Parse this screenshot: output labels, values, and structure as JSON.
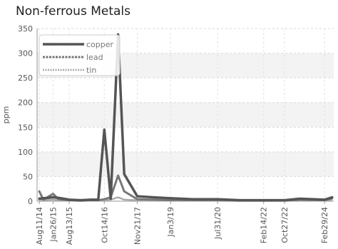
{
  "chart_data": {
    "type": "line",
    "title": "Non-ferrous Metals",
    "ylabel": "ppm",
    "xlabel": "",
    "ylim": [
      0,
      350
    ],
    "yticks": [
      0,
      50,
      100,
      150,
      200,
      250,
      300,
      350
    ],
    "grid": true,
    "legend_position": "top-left",
    "x_tick_labels": [
      "Aug11/14",
      "Jan26/15",
      "Aug13/15",
      "Oct14/16",
      "Nov21/17",
      "Jan3/19",
      "Jul31/20",
      "Feb14/22",
      "Oct27/22",
      "Feb29/24"
    ],
    "x": [
      "2014-08-11",
      "2014-10-01",
      "2015-01-26",
      "2015-04-01",
      "2015-08-13",
      "2016-01-01",
      "2016-05-01",
      "2016-08-01",
      "2016-10-14",
      "2017-01-01",
      "2017-04-01",
      "2017-06-15",
      "2017-11-21",
      "2018-06-01",
      "2019-01-03",
      "2019-10-01",
      "2020-07-31",
      "2021-05-01",
      "2022-02-14",
      "2022-06-01",
      "2022-10-27",
      "2023-05-01",
      "2024-02-29",
      "2024-06-01"
    ],
    "series": [
      {
        "name": "copper",
        "color": "#555555",
        "style": "solid",
        "values": [
          5,
          6,
          8,
          7,
          3,
          2,
          3,
          3,
          145,
          5,
          338,
          55,
          10,
          8,
          6,
          4,
          4,
          2,
          2,
          2,
          2,
          5,
          3,
          8
        ]
      },
      {
        "name": "lead",
        "color": "#777777",
        "style": "dashed",
        "values": [
          20,
          3,
          15,
          4,
          2,
          1,
          2,
          2,
          4,
          8,
          52,
          20,
          4,
          3,
          2,
          2,
          2,
          1,
          1,
          1,
          1,
          3,
          2,
          6
        ]
      },
      {
        "name": "tin",
        "color": "#aaaaaa",
        "style": "dotted",
        "values": [
          3,
          2,
          3,
          2,
          1,
          1,
          1,
          1,
          2,
          3,
          8,
          3,
          2,
          1,
          1,
          1,
          1,
          1,
          1,
          1,
          1,
          2,
          1,
          3
        ]
      }
    ]
  }
}
